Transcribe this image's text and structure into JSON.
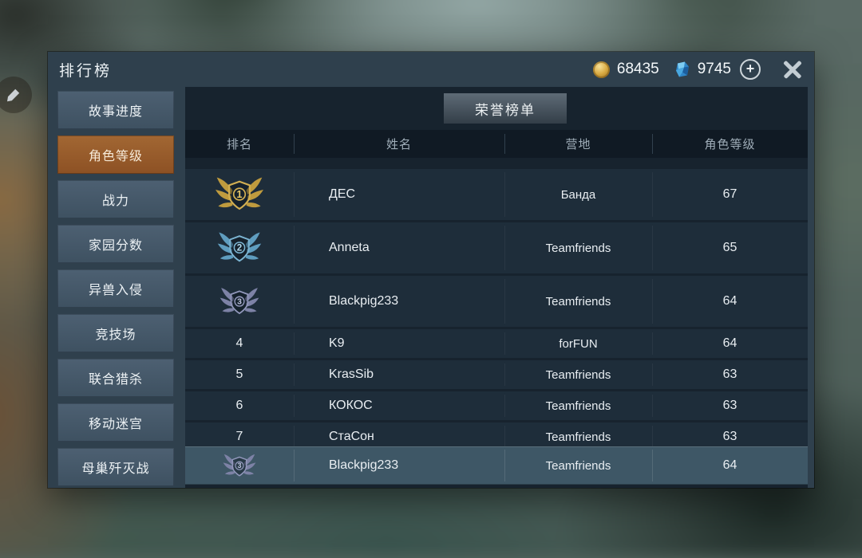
{
  "window": {
    "title": "排行榜"
  },
  "currencies": {
    "coins": "68435",
    "gems": "9745"
  },
  "icons": {
    "plus_label": "+"
  },
  "sidebar": {
    "items": [
      {
        "label": "故事进度",
        "selected": false
      },
      {
        "label": "角色等级",
        "selected": true
      },
      {
        "label": "战力",
        "selected": false
      },
      {
        "label": "家园分数",
        "selected": false
      },
      {
        "label": "异兽入侵",
        "selected": false
      },
      {
        "label": "竞技场",
        "selected": false
      },
      {
        "label": "联合猎杀",
        "selected": false
      },
      {
        "label": "移动迷宫",
        "selected": false
      },
      {
        "label": "母巢歼灭战",
        "selected": false
      }
    ]
  },
  "main": {
    "tab": "荣誉榜单",
    "table": {
      "headers": [
        "排名",
        "姓名",
        "营地",
        "角色等级"
      ],
      "rows": [
        {
          "rank": "1",
          "badge": "gold",
          "name": "ДЕС",
          "camp": "Банда",
          "level": "67"
        },
        {
          "rank": "2",
          "badge": "blue",
          "name": "Anneta",
          "camp": "Teamfriends",
          "level": "65"
        },
        {
          "rank": "3",
          "badge": "purple",
          "name": "Blackpig233",
          "camp": "Teamfriends",
          "level": "64"
        },
        {
          "rank": "4",
          "badge": null,
          "name": "K9",
          "camp": "forFUN",
          "level": "64"
        },
        {
          "rank": "5",
          "badge": null,
          "name": "KrasSib",
          "camp": "Teamfriends",
          "level": "63"
        },
        {
          "rank": "6",
          "badge": null,
          "name": "КОКОС",
          "camp": "Teamfriends",
          "level": "63"
        },
        {
          "rank": "7",
          "badge": null,
          "name": "СтаСон",
          "camp": "Teamfriends",
          "level": "63"
        }
      ],
      "pinned_row": {
        "rank": "3",
        "badge": "purple",
        "name": "Blackpig233",
        "camp": "Teamfriends",
        "level": "64"
      }
    }
  },
  "colors": {
    "selected_tab_orange": "#96572b",
    "panel": "#2f404d",
    "content_bg": "#17232e",
    "row_bg": "#1e2d3a",
    "pinned_row_bg": "#3e5766",
    "badges": {
      "gold": {
        "wing": "#bf9b3e",
        "stroke": "#d2af52",
        "number": "#e7c868"
      },
      "blue": {
        "wing": "#5f9dbf",
        "stroke": "#7cb5d3",
        "number": "#aed8ec"
      },
      "purple": {
        "wing": "#7d82a6",
        "stroke": "#9399bd",
        "number": "#bdc2de"
      }
    }
  }
}
